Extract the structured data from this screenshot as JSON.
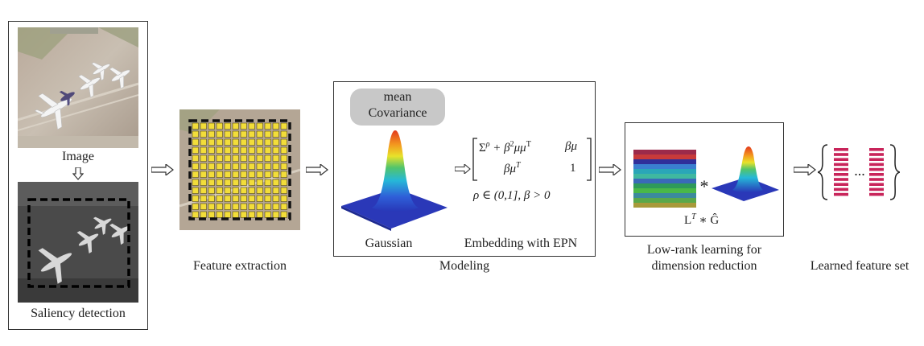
{
  "labels": {
    "image": "Image",
    "saliency": "Saliency detection",
    "feature": "Feature extraction",
    "modeling": "Modeling",
    "mean": "mean",
    "covariance": "Covariance",
    "gaussian": "Gaussian",
    "embedding": "Embedding with EPN",
    "lowrank_line1": "Low-rank learning for",
    "lowrank_line2": "dimension reduction",
    "learned": "Learned feature set",
    "star": "*",
    "ellipsis": "..."
  },
  "math": {
    "m11": "Σ",
    "m11_sup": "ρ",
    "m11_mid": " + β",
    "m11_sup2": "2",
    "m11_end": "μμ",
    "m11_T": "T",
    "m12": "βμ",
    "m21": "βμ",
    "m21_sup": "T",
    "m22": "1",
    "constraint": "ρ ∈ (0,1], β > 0",
    "product_L": "L",
    "product_sup": "T",
    "product_rest": " ∗ Ĝ"
  },
  "colors": {
    "feature_cell": "#f2dd3a",
    "bar": "#c8245a",
    "pill": "#c8c8c8",
    "border": "#333333"
  }
}
